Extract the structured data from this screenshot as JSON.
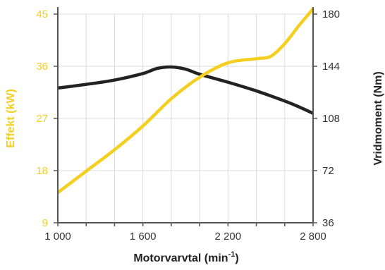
{
  "colors": {
    "power": "#f5cf1f",
    "torque": "#222222",
    "axis": "#555555",
    "grid": "#dcdcdc",
    "text": "#333333"
  },
  "chart_data": {
    "type": "line",
    "grid": true,
    "x_label_main": "Motorvarvtal (min",
    "x_label_sup": "-1",
    "x_label_close": ")",
    "x_ticks": [
      "1 000",
      "1 600",
      "2 200",
      "2 800"
    ],
    "x_tick_values": [
      1000,
      1600,
      2200,
      2800
    ],
    "xlim": [
      1000,
      2800
    ],
    "y_left": {
      "label": "Effekt (kW)",
      "ticks": [
        "9",
        "18",
        "27",
        "36",
        "45"
      ],
      "tick_values": [
        9,
        18,
        27,
        36,
        45
      ],
      "lim": [
        9,
        45
      ]
    },
    "y_right": {
      "label": "Vridmoment (Nm)",
      "ticks": [
        "36",
        "72",
        "108",
        "144",
        "180"
      ],
      "tick_values": [
        36,
        72,
        108,
        144,
        180
      ],
      "lim": [
        36,
        180
      ]
    },
    "series": [
      {
        "key": "torque",
        "axis": "right",
        "x": [
          1000,
          1200,
          1400,
          1600,
          1700,
          1800,
          1900,
          2000,
          2200,
          2400,
          2600,
          2700,
          2800
        ],
        "y": [
          129,
          131.5,
          134.5,
          139,
          142.5,
          143.5,
          142,
          138.5,
          133,
          127,
          120,
          116,
          111.5
        ]
      },
      {
        "key": "power",
        "axis": "left",
        "x": [
          1000,
          1200,
          1400,
          1600,
          1800,
          2000,
          2200,
          2400,
          2500,
          2600,
          2700,
          2800
        ],
        "y": [
          14.2,
          17.9,
          21.6,
          25.7,
          30.4,
          34.1,
          36.6,
          37.3,
          37.7,
          39.9,
          43.0,
          45.9
        ]
      }
    ]
  }
}
